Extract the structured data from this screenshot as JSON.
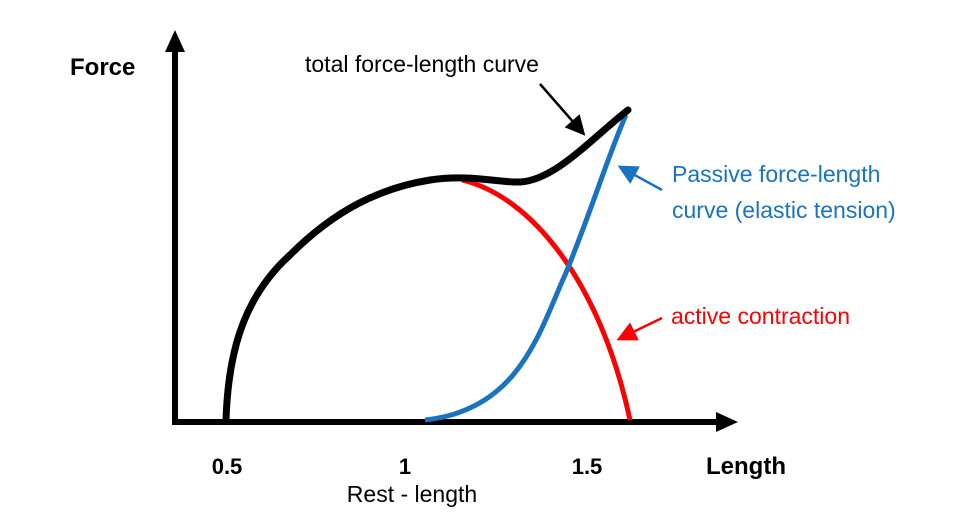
{
  "axes": {
    "y_title": "Force",
    "x_title": "Length",
    "x_ticks": [
      "0.5",
      "1",
      "1.5"
    ],
    "x_sublabel": "Rest - length"
  },
  "annotations": {
    "total": "total force-length curve",
    "passive_line1": "Passive force-length",
    "passive_line2": "curve (elastic tension)",
    "active": "active contraction"
  },
  "colors": {
    "axis": "#000000",
    "total": "#000000",
    "passive": "#1a73c1",
    "active": "#ff0000"
  },
  "curves": [
    {
      "key": "total",
      "color_key": "total"
    },
    {
      "key": "passive",
      "color_key": "passive"
    },
    {
      "key": "active",
      "color_key": "active"
    }
  ]
}
